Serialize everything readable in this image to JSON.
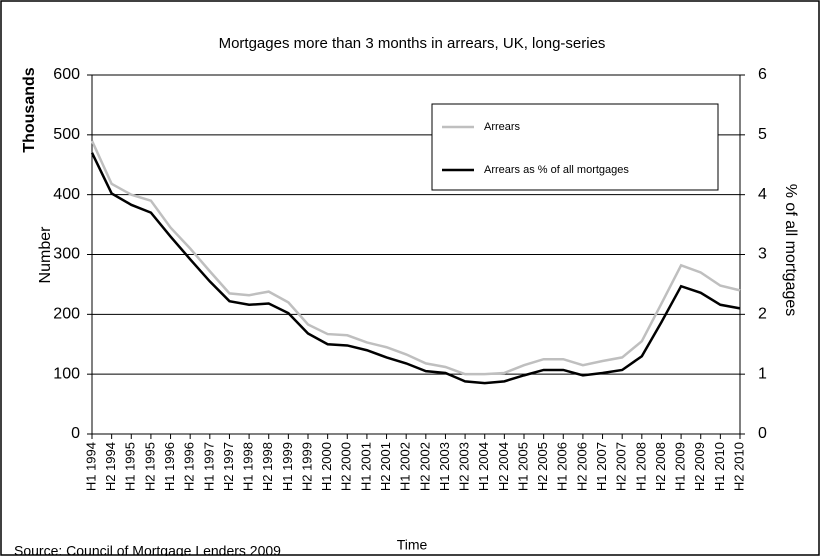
{
  "chart_data": {
    "type": "line",
    "title": "Mortgages more than 3 months in arrears, UK, long-series",
    "ylabel": "Number",
    "yunit": "Thousands",
    "y2label": "% of all mortgages",
    "xlabel": "Time",
    "source": "Source: Council of Mortgage Lenders 2009",
    "categories": [
      "H1 1994",
      "H2 1994",
      "H1 1995",
      "H2 1995",
      "H1 1996",
      "H2 1996",
      "H1 1997",
      "H2 1997",
      "H1 1998",
      "H2 1998",
      "H1 1999",
      "H2 1999",
      "H1 2000",
      "H2 2000",
      "H1 2001",
      "H2 2001",
      "H1 2002",
      "H2 2002",
      "H1 2003",
      "H2 2003",
      "H1 2004",
      "H2 2004",
      "H1 2005",
      "H2 2005",
      "H1 2006",
      "H2 2006",
      "H1 2007",
      "H2 2007",
      "H1 2008",
      "H2 2008",
      "H1 2009",
      "H2 2009",
      "H1 2010",
      "H2 2010"
    ],
    "series": [
      {
        "name": "Arrears",
        "color": "#bfbfbf",
        "values": [
          490,
          418,
          400,
          390,
          345,
          310,
          272,
          235,
          232,
          238,
          220,
          183,
          167,
          165,
          153,
          145,
          133,
          118,
          112,
          100,
          100,
          102,
          115,
          125,
          125,
          115,
          122,
          128,
          155,
          218,
          282,
          270,
          248,
          240
        ]
      },
      {
        "name": "Arrears as % of all mortgages",
        "color": "#000000",
        "axis": "y2",
        "values": [
          4.7,
          4.02,
          3.83,
          3.7,
          3.3,
          2.92,
          2.55,
          2.22,
          2.16,
          2.18,
          2.02,
          1.68,
          1.5,
          1.48,
          1.4,
          1.28,
          1.18,
          1.05,
          1.02,
          0.88,
          0.85,
          0.88,
          0.98,
          1.07,
          1.07,
          0.98,
          1.02,
          1.07,
          1.3,
          1.87,
          2.47,
          2.36,
          2.16,
          2.1
        ]
      }
    ],
    "ylim": [
      0,
      600
    ],
    "yticks": [
      0,
      100,
      200,
      300,
      400,
      500,
      600
    ],
    "y2lim": [
      0,
      6
    ],
    "y2ticks": [
      0,
      1,
      2,
      3,
      4,
      5,
      6
    ],
    "grid": true
  }
}
